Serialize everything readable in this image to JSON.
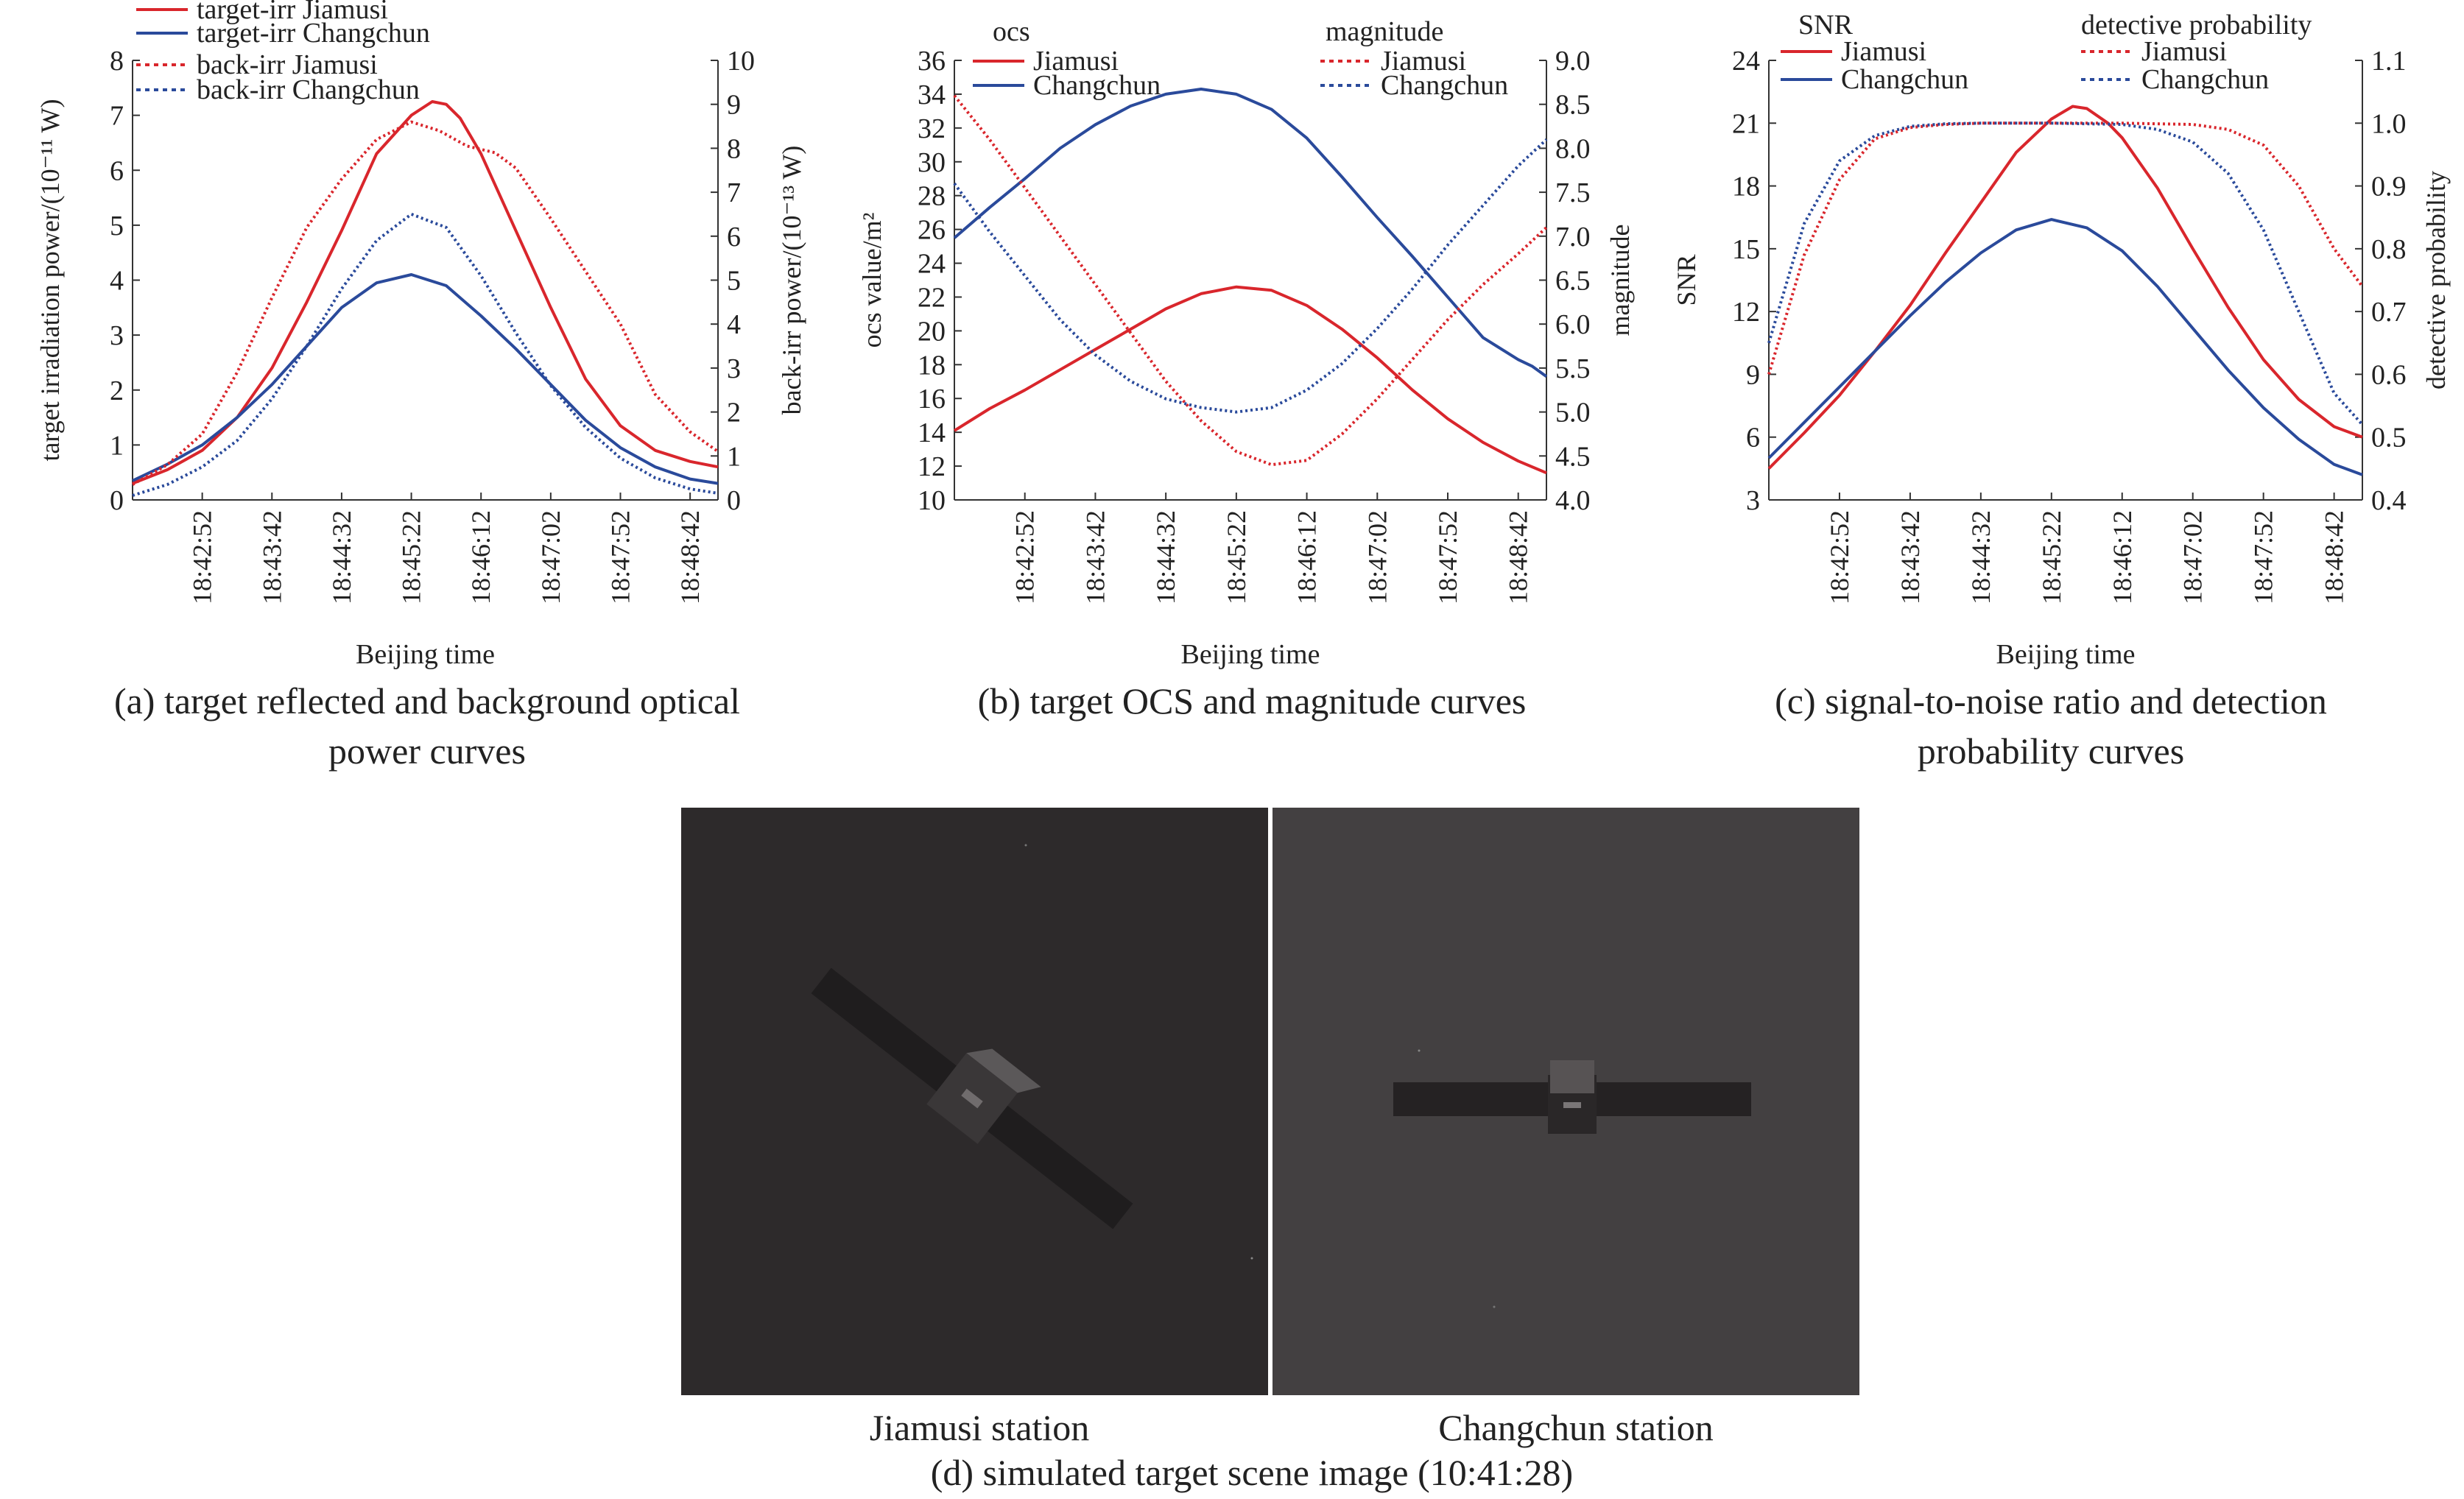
{
  "chart_data": [
    {
      "id": "a",
      "type": "line",
      "caption": "(a) target reflected and background optical power curves",
      "xlabel": "Beijing time",
      "ylabel": "target irradiation power/(10⁻¹¹ W)",
      "ylabel_right": "back-irr power/(10⁻¹³ W)",
      "ylim": [
        0,
        8
      ],
      "ylim_right": [
        0,
        10
      ],
      "yticks": [
        "0",
        "1",
        "2",
        "3",
        "4",
        "5",
        "6",
        "7",
        "8"
      ],
      "yticks_right": [
        "0",
        "1",
        "2",
        "3",
        "4",
        "5",
        "6",
        "7",
        "8",
        "9",
        "10"
      ],
      "xlim": [
        0,
        420
      ],
      "xticks": [
        {
          "t": 50,
          "label": "18:42:52"
        },
        {
          "t": 100,
          "label": "18:43:42"
        },
        {
          "t": 150,
          "label": "18:44:32"
        },
        {
          "t": 200,
          "label": "18:45:22"
        },
        {
          "t": 250,
          "label": "18:46:12"
        },
        {
          "t": 300,
          "label": "18:47:02"
        },
        {
          "t": 350,
          "label": "18:47:52"
        },
        {
          "t": 400,
          "label": "18:48:42"
        }
      ],
      "legend": "top-left",
      "series": [
        {
          "name": "target-irr Jiamusi",
          "axis": "left",
          "color": "#d9262c",
          "dash": "solid",
          "x": [
            0,
            25,
            50,
            75,
            100,
            125,
            150,
            175,
            200,
            215,
            225,
            235,
            250,
            275,
            300,
            325,
            350,
            375,
            400,
            420
          ],
          "y": [
            0.3,
            0.55,
            0.9,
            1.5,
            2.4,
            3.6,
            4.9,
            6.3,
            7.0,
            7.25,
            7.2,
            6.95,
            6.3,
            4.9,
            3.5,
            2.2,
            1.35,
            0.9,
            0.7,
            0.6
          ]
        },
        {
          "name": "target-irr Changchun",
          "axis": "left",
          "color": "#2a4a9b",
          "dash": "solid",
          "x": [
            0,
            25,
            50,
            75,
            100,
            125,
            150,
            175,
            200,
            225,
            250,
            275,
            300,
            325,
            350,
            375,
            400,
            420
          ],
          "y": [
            0.35,
            0.65,
            1.0,
            1.5,
            2.1,
            2.8,
            3.5,
            3.95,
            4.1,
            3.9,
            3.35,
            2.75,
            2.1,
            1.45,
            0.95,
            0.6,
            0.38,
            0.3
          ]
        },
        {
          "name": "back-irr Jiamusi",
          "axis": "right",
          "color": "#d9262c",
          "dash": "dotted",
          "x": [
            0,
            25,
            50,
            75,
            100,
            125,
            150,
            175,
            200,
            220,
            240,
            260,
            275,
            300,
            325,
            350,
            375,
            400,
            420
          ],
          "y": [
            0.35,
            0.8,
            1.5,
            2.9,
            4.6,
            6.2,
            7.3,
            8.2,
            8.6,
            8.4,
            8.05,
            7.9,
            7.55,
            6.4,
            5.2,
            4.0,
            2.4,
            1.55,
            1.1
          ]
        },
        {
          "name": "back-irr Changchun",
          "axis": "right",
          "color": "#2a4a9b",
          "dash": "dotted",
          "x": [
            0,
            25,
            50,
            75,
            100,
            125,
            150,
            175,
            200,
            225,
            250,
            275,
            300,
            325,
            350,
            375,
            400,
            420
          ],
          "y": [
            0.1,
            0.35,
            0.75,
            1.35,
            2.3,
            3.5,
            4.8,
            5.9,
            6.5,
            6.2,
            5.1,
            3.8,
            2.6,
            1.65,
            0.95,
            0.5,
            0.25,
            0.15
          ]
        }
      ]
    },
    {
      "id": "b",
      "type": "line",
      "caption": "(b) target OCS and magnitude curves",
      "xlabel": "Beijing time",
      "ylabel": "ocs value/m²",
      "ylabel_right": "magnitude",
      "legend_title_left": "ocs",
      "legend_title_right": "magnitude",
      "ylim": [
        10,
        36
      ],
      "ylim_right": [
        4.0,
        9.0
      ],
      "yticks": [
        "10",
        "12",
        "14",
        "16",
        "18",
        "20",
        "22",
        "24",
        "26",
        "28",
        "30",
        "32",
        "34",
        "36"
      ],
      "yticks_right": [
        "4.0",
        "4.5",
        "5.0",
        "5.5",
        "6.0",
        "6.5",
        "7.0",
        "7.5",
        "8.0",
        "8.5",
        "9.0"
      ],
      "xlim": [
        0,
        420
      ],
      "xticks": [
        {
          "t": 50,
          "label": "18:42:52"
        },
        {
          "t": 100,
          "label": "18:43:42"
        },
        {
          "t": 150,
          "label": "18:44:32"
        },
        {
          "t": 200,
          "label": "18:45:22"
        },
        {
          "t": 250,
          "label": "18:46:12"
        },
        {
          "t": 300,
          "label": "18:47:02"
        },
        {
          "t": 350,
          "label": "18:47:52"
        },
        {
          "t": 400,
          "label": "18:48:42"
        }
      ],
      "legend": "top",
      "series": [
        {
          "name": "Jiamusi",
          "group": "ocs",
          "axis": "left",
          "color": "#d9262c",
          "dash": "solid",
          "x": [
            0,
            25,
            50,
            75,
            100,
            125,
            150,
            175,
            200,
            225,
            250,
            275,
            300,
            325,
            350,
            375,
            400,
            420
          ],
          "y": [
            14.1,
            15.4,
            16.5,
            17.7,
            18.9,
            20.1,
            21.3,
            22.2,
            22.6,
            22.4,
            21.5,
            20.1,
            18.4,
            16.5,
            14.8,
            13.4,
            12.3,
            11.6
          ]
        },
        {
          "name": "Changchun",
          "group": "ocs",
          "axis": "left",
          "color": "#2a4a9b",
          "dash": "solid",
          "x": [
            0,
            25,
            50,
            75,
            100,
            125,
            150,
            175,
            200,
            225,
            250,
            275,
            300,
            325,
            350,
            375,
            400,
            410,
            420
          ],
          "y": [
            25.5,
            27.3,
            29.0,
            30.8,
            32.2,
            33.3,
            34.0,
            34.3,
            34.0,
            33.1,
            31.4,
            29.1,
            26.7,
            24.4,
            22.0,
            19.6,
            18.3,
            17.9,
            17.3
          ]
        },
        {
          "name": "Jiamusi",
          "group": "magnitude",
          "axis": "right",
          "color": "#d9262c",
          "dash": "dotted",
          "x": [
            0,
            25,
            50,
            75,
            100,
            125,
            150,
            175,
            200,
            225,
            250,
            275,
            300,
            325,
            350,
            375,
            400,
            420
          ],
          "y": [
            8.6,
            8.1,
            7.55,
            7.0,
            6.45,
            5.9,
            5.35,
            4.9,
            4.55,
            4.4,
            4.45,
            4.75,
            5.15,
            5.6,
            6.05,
            6.45,
            6.8,
            7.1
          ]
        },
        {
          "name": "Changchun",
          "group": "magnitude",
          "axis": "right",
          "color": "#2a4a9b",
          "dash": "dotted",
          "x": [
            0,
            25,
            50,
            75,
            100,
            125,
            150,
            175,
            200,
            225,
            250,
            275,
            300,
            325,
            350,
            375,
            400,
            420
          ],
          "y": [
            7.6,
            7.05,
            6.55,
            6.05,
            5.65,
            5.35,
            5.15,
            5.05,
            5.0,
            5.05,
            5.25,
            5.55,
            5.95,
            6.4,
            6.9,
            7.35,
            7.8,
            8.1
          ]
        }
      ]
    },
    {
      "id": "c",
      "type": "line",
      "caption": "(c) signal-to-noise ratio and detection probability curves",
      "xlabel": "Beijing time",
      "ylabel": "SNR",
      "ylabel_right": "detective probability",
      "legend_title_left": "SNR",
      "legend_title_right": "detective probability",
      "ylim": [
        3,
        24
      ],
      "ylim_right": [
        0.4,
        1.1
      ],
      "yticks": [
        "3",
        "6",
        "9",
        "12",
        "15",
        "18",
        "21",
        "24"
      ],
      "yticks_right": [
        "0.4",
        "0.5",
        "0.6",
        "0.7",
        "0.8",
        "0.9",
        "1.0",
        "1.1"
      ],
      "xlim": [
        0,
        420
      ],
      "xticks": [
        {
          "t": 50,
          "label": "18:42:52"
        },
        {
          "t": 100,
          "label": "18:43:42"
        },
        {
          "t": 150,
          "label": "18:44:32"
        },
        {
          "t": 200,
          "label": "18:45:22"
        },
        {
          "t": 250,
          "label": "18:46:12"
        },
        {
          "t": 300,
          "label": "18:47:02"
        },
        {
          "t": 350,
          "label": "18:47:52"
        },
        {
          "t": 400,
          "label": "18:48:42"
        }
      ],
      "legend": "top",
      "series": [
        {
          "name": "Jiamusi",
          "group": "SNR",
          "axis": "left",
          "color": "#d9262c",
          "dash": "solid",
          "x": [
            0,
            25,
            50,
            75,
            100,
            125,
            150,
            175,
            200,
            215,
            225,
            240,
            250,
            275,
            300,
            325,
            350,
            375,
            400,
            420
          ],
          "y": [
            4.5,
            6.2,
            8.0,
            10.1,
            12.3,
            14.8,
            17.2,
            19.6,
            21.2,
            21.8,
            21.7,
            21.0,
            20.3,
            17.9,
            15.0,
            12.2,
            9.7,
            7.8,
            6.5,
            6.0
          ]
        },
        {
          "name": "Changchun",
          "group": "SNR",
          "axis": "left",
          "color": "#2a4a9b",
          "dash": "solid",
          "x": [
            0,
            25,
            50,
            75,
            100,
            125,
            150,
            175,
            200,
            225,
            250,
            275,
            300,
            325,
            350,
            375,
            400,
            420
          ],
          "y": [
            5.0,
            6.7,
            8.4,
            10.1,
            11.8,
            13.4,
            14.8,
            15.9,
            16.4,
            16.0,
            14.9,
            13.2,
            11.2,
            9.2,
            7.4,
            5.9,
            4.7,
            4.2
          ]
        },
        {
          "name": "Jiamusi",
          "group": "detective probability",
          "axis": "right",
          "color": "#d9262c",
          "dash": "dotted",
          "x": [
            0,
            25,
            50,
            75,
            100,
            125,
            150,
            200,
            250,
            300,
            325,
            350,
            375,
            400,
            420
          ],
          "y": [
            0.6,
            0.79,
            0.91,
            0.975,
            0.993,
            0.998,
            1.0,
            1.0,
            1.0,
            0.998,
            0.99,
            0.965,
            0.9,
            0.8,
            0.74
          ]
        },
        {
          "name": "Changchun",
          "group": "detective probability",
          "axis": "right",
          "color": "#2a4a9b",
          "dash": "dotted",
          "x": [
            0,
            25,
            50,
            75,
            100,
            125,
            150,
            200,
            250,
            275,
            300,
            325,
            350,
            375,
            400,
            420
          ],
          "y": [
            0.65,
            0.84,
            0.94,
            0.98,
            0.995,
            0.999,
            1.0,
            1.0,
            0.998,
            0.99,
            0.97,
            0.92,
            0.83,
            0.7,
            0.57,
            0.52
          ]
        }
      ]
    }
  ],
  "scene": {
    "caption": "(d) simulated target scene image (10:41:28)",
    "left_label": "Jiamusi station",
    "right_label": "Changchun station",
    "left_bg": "#2d2a2b",
    "right_bg": "#434041"
  }
}
